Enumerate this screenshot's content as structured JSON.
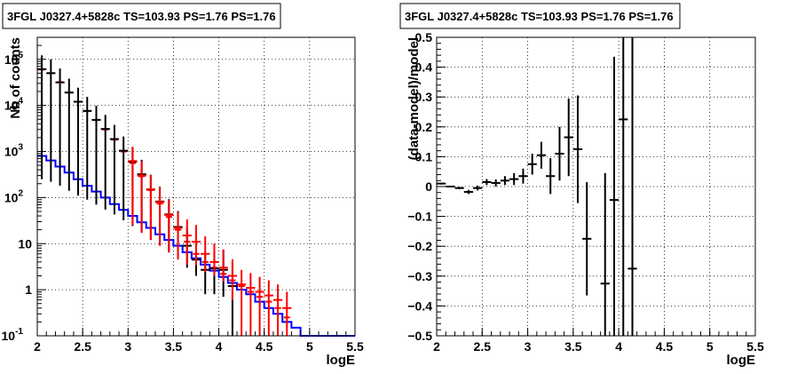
{
  "chart_data": [
    {
      "type": "line",
      "title": "3FGL J0327.4+5828c TS=103.93 PS=1.76 PS=1.76",
      "xlabel": "logE",
      "ylabel": "Nb of counts",
      "xlim": [
        2,
        5.5
      ],
      "ylim": [
        0.1,
        300000
      ],
      "yscale": "log",
      "grid": true,
      "x_ticks": [
        "2",
        "2.5",
        "3",
        "3.5",
        "4",
        "4.5",
        "5",
        "5.5"
      ],
      "y_ticks": [
        {
          "value": 0.1,
          "base": "10",
          "exp": "-1"
        },
        {
          "value": 1,
          "base": "1",
          "exp": ""
        },
        {
          "value": 10,
          "base": "10",
          "exp": ""
        },
        {
          "value": 100,
          "base": "10",
          "exp": "2"
        },
        {
          "value": 1000,
          "base": "10",
          "exp": "3"
        },
        {
          "value": 10000,
          "base": "10",
          "exp": "4"
        },
        {
          "value": 100000,
          "base": "10",
          "exp": "5"
        }
      ],
      "bin_edges": [
        2.0,
        2.1,
        2.2,
        2.3,
        2.4,
        2.5,
        2.6,
        2.7,
        2.8,
        2.9,
        3.0,
        3.1,
        3.2,
        3.3,
        3.4,
        3.5,
        3.6,
        3.7,
        3.8,
        3.9,
        4.0,
        4.1,
        4.2,
        4.3,
        4.4,
        4.5,
        4.6,
        4.7,
        4.8,
        4.9,
        5.0,
        5.1,
        5.2,
        5.3,
        5.4,
        5.5
      ],
      "series": [
        {
          "role": "source model",
          "color": "#0000ff",
          "style": "step",
          "values": [
            800,
            640,
            470,
            350,
            250,
            180,
            135,
            100,
            72,
            54,
            40,
            29,
            22,
            16,
            12,
            9,
            6.5,
            4.8,
            3.5,
            2.6,
            1.9,
            1.4,
            1.0,
            0.8,
            0.55,
            0.4,
            0.3,
            0.2,
            0.15,
            0.1,
            0.1,
            0.1,
            0.1,
            0.1,
            0.1
          ]
        },
        {
          "role": "total model",
          "color": "#ff0000",
          "style": "hbar",
          "values": [
            60000,
            50000,
            32000,
            19000,
            12000,
            7500,
            4800,
            3000,
            1800,
            1000,
            560,
            290,
            145,
            74,
            38,
            20,
            11,
            6,
            4,
            3,
            2.2,
            1.6,
            1.2,
            0.9,
            0.7,
            0.55,
            0.4,
            0.25
          ]
        },
        {
          "role": "data",
          "color": "#000000",
          "style": "errorbar",
          "x": [
            2.05,
            2.15,
            2.25,
            2.35,
            2.45,
            2.55,
            2.65,
            2.75,
            2.85,
            2.95,
            3.05,
            3.15,
            3.25,
            3.35,
            3.45,
            3.55,
            3.65,
            3.75,
            3.85,
            3.95,
            4.05,
            4.15
          ],
          "values": [
            61000,
            50000,
            31500,
            19000,
            12000,
            7600,
            4850,
            3080,
            1860,
            1040,
            600,
            320,
            150,
            82,
            43,
            23,
            9,
            4.5,
            2.7,
            2.9,
            2.7,
            1.2
          ],
          "errlow": [
            60750,
            49780,
            31320,
            18860,
            11890,
            7510,
            4780,
            3025,
            1817,
            1008,
            576,
            302,
            138,
            73,
            36.5,
            18.2,
            6,
            2.5,
            1.9,
            2.1,
            2.0,
            1.1
          ],
          "errhigh": [
            61250,
            50220,
            31680,
            19140,
            12110,
            7690,
            4920,
            3135,
            1903,
            1072,
            624,
            338,
            162,
            91,
            49.5,
            27.8,
            12,
            6.5,
            3.6,
            3.9,
            4.6,
            2.6
          ]
        },
        {
          "role": "data (overlay)",
          "color": "#ff0000",
          "style": "errorbar",
          "x": [
            3.05,
            3.15,
            3.25,
            3.35,
            3.45,
            3.55,
            3.65,
            3.75,
            3.85,
            3.95,
            4.05,
            4.15,
            4.25,
            4.35,
            4.45,
            4.55,
            4.65,
            4.75
          ],
          "values": [
            620,
            300,
            150,
            80,
            42,
            22,
            15,
            11,
            6,
            4,
            3,
            2,
            1.3,
            1.1,
            0.9,
            0.75,
            0.6,
            0.4
          ],
          "errlow": [
            595,
            283,
            138,
            71,
            35.6,
            17.5,
            11.5,
            7.6,
            3.6,
            2.0,
            1.5,
            1.4,
            1.2,
            1.0,
            0.8,
            0.65,
            0.5,
            0.35
          ],
          "errhigh": [
            645,
            317,
            162,
            89,
            48.4,
            26.5,
            18.5,
            14.4,
            8.4,
            6.0,
            4.5,
            2.6,
            1.4,
            1.2,
            1.0,
            0.85,
            0.7,
            0.5
          ]
        }
      ]
    },
    {
      "type": "scatter",
      "title": "3FGL J0327.4+5828c TS=103.93 PS=1.76 PS=1.76",
      "xlabel": "logE",
      "ylabel": "(data-model)/model",
      "xlim": [
        2,
        5.5
      ],
      "ylim": [
        -0.5,
        0.5
      ],
      "yscale": "linear",
      "grid": true,
      "x_ticks": [
        "2",
        "2.5",
        "3",
        "3.5",
        "4",
        "4.5",
        "5",
        "5.5"
      ],
      "y_ticks": [
        "−0.5",
        "−0.4",
        "−0.3",
        "−0.2",
        "−0.1",
        "0",
        "0.1",
        "0.2",
        "0.3",
        "0.4",
        "0.5"
      ],
      "series": [
        {
          "role": "residuals",
          "color": "#000000",
          "style": "errorbar",
          "x": [
            2.05,
            2.15,
            2.25,
            2.35,
            2.45,
            2.55,
            2.65,
            2.75,
            2.85,
            2.95,
            3.05,
            3.15,
            3.25,
            3.35,
            3.45,
            3.55,
            3.65,
            3.85,
            3.95,
            4.05,
            4.15
          ],
          "values": [
            0.01,
            0.0,
            -0.005,
            -0.018,
            -0.005,
            0.015,
            0.012,
            0.02,
            0.025,
            0.035,
            0.075,
            0.105,
            0.035,
            0.11,
            0.165,
            0.125,
            -0.175,
            -0.325,
            -0.045,
            0.225,
            -0.275
          ],
          "errlow": [
            0.003,
            0.003,
            0.004,
            0.007,
            0.008,
            0.01,
            0.012,
            0.015,
            0.02,
            0.025,
            0.035,
            0.045,
            0.06,
            0.09,
            0.13,
            0.18,
            0.19,
            0.37,
            0.455,
            0.725,
            0.225
          ],
          "errhigh": [
            0.003,
            0.003,
            0.004,
            0.007,
            0.008,
            0.01,
            0.012,
            0.015,
            0.02,
            0.025,
            0.035,
            0.045,
            0.06,
            0.09,
            0.13,
            0.18,
            0.19,
            0.37,
            0.48,
            0.275,
            0.775
          ]
        }
      ]
    }
  ]
}
